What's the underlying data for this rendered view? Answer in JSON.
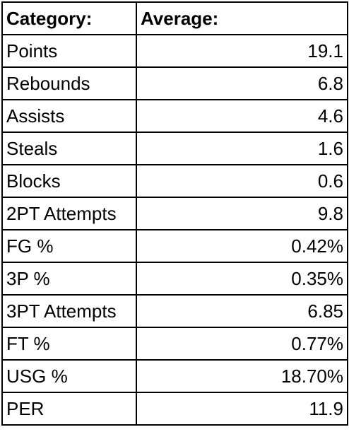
{
  "table": {
    "headers": [
      "Category:",
      "Average:"
    ],
    "rows": [
      {
        "category": "Points",
        "average": "19.1"
      },
      {
        "category": "Rebounds",
        "average": "6.8"
      },
      {
        "category": "Assists",
        "average": "4.6"
      },
      {
        "category": "Steals",
        "average": "1.6"
      },
      {
        "category": "Blocks",
        "average": "0.6"
      },
      {
        "category": "2PT Attempts",
        "average": "9.8"
      },
      {
        "category": "FG %",
        "average": "0.42%"
      },
      {
        "category": "3P %",
        "average": "0.35%"
      },
      {
        "category": "3PT Attempts",
        "average": "6.85"
      },
      {
        "category": "FT %",
        "average": "0.77%"
      },
      {
        "category": "USG %",
        "average": "18.70%"
      },
      {
        "category": "PER",
        "average": "11.9"
      }
    ]
  }
}
